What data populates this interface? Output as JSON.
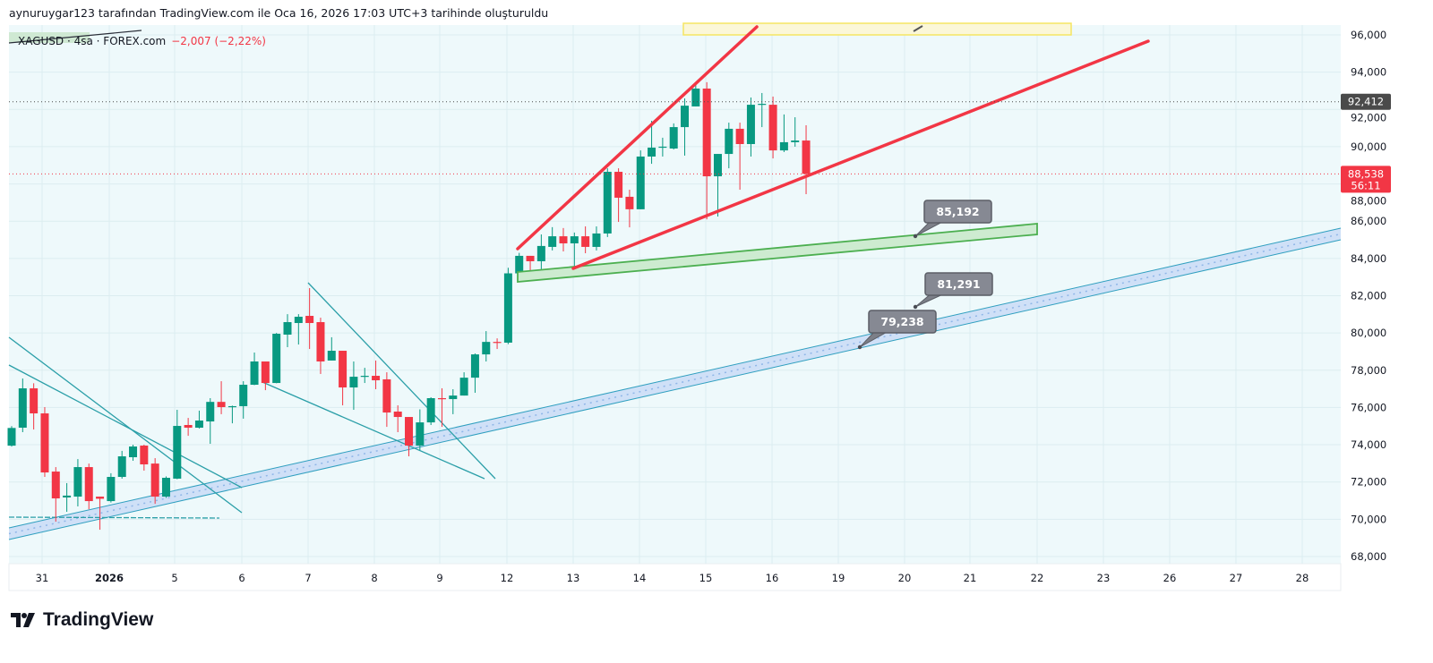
{
  "header": {
    "attribution": "aynuruygar123 tarafından TradingView.com ile Oca 16, 2026 17:03 UTC+3 tarihinde oluşturuldu",
    "symbol_line": "XAGUSD · 4sa · FOREX.com",
    "change": "−2,007 (−2,22%)"
  },
  "footer": {
    "brand": "TradingView"
  },
  "colors": {
    "up": "#089981",
    "down": "#f23645",
    "background": "#eef9fb",
    "grid": "#dcedf0"
  },
  "chart_data": {
    "type": "candlestick",
    "symbol": "XAGUSD",
    "interval": "4sa",
    "ylim": [
      67500,
      97000
    ],
    "y_ticks": [
      "96,000",
      "94,000",
      "92,000",
      "90,000",
      "88,000",
      "86,000",
      "84,000",
      "82,000",
      "80,000",
      "78,000",
      "76,000",
      "74,000",
      "72,000",
      "70,000",
      "68,000"
    ],
    "y_tick_values": [
      96000,
      94000,
      92000,
      90000,
      88000,
      86000,
      84000,
      82000,
      80000,
      78000,
      76000,
      74000,
      72000,
      70000,
      68000
    ],
    "x_ticks": [
      "31",
      "2026",
      "5",
      "6",
      "7",
      "8",
      "9",
      "12",
      "13",
      "14",
      "15",
      "16",
      "19",
      "20",
      "21",
      "22",
      "23",
      "26",
      "27",
      "28"
    ],
    "price_markers": [
      {
        "label": "92,412",
        "value": 92412,
        "color": "#4a4a4a"
      },
      {
        "label": "88,538",
        "sub": "56:11",
        "value": 88538,
        "color": "#f23645"
      }
    ],
    "annotations": [
      {
        "label": "85,192",
        "value": 85192
      },
      {
        "label": "81,291",
        "value": 81291
      },
      {
        "label": "79,238",
        "value": 79238
      }
    ],
    "ohlc": [
      [
        73950,
        75000,
        73900,
        74900
      ],
      [
        74915,
        77556,
        74675,
        77027
      ],
      [
        77027,
        77300,
        74820,
        75683
      ],
      [
        75683,
        76020,
        72273,
        72513
      ],
      [
        72560,
        72800,
        69870,
        71120
      ],
      [
        71170,
        71940,
        70400,
        71270
      ],
      [
        71215,
        73230,
        70690,
        72800
      ],
      [
        72800,
        72990,
        70540,
        70975
      ],
      [
        71215,
        71215,
        69440,
        71100
      ],
      [
        70975,
        72470,
        70900,
        72273
      ],
      [
        72273,
        73670,
        72180,
        73378
      ],
      [
        73330,
        74000,
        73140,
        73906
      ],
      [
        73954,
        74000,
        72610,
        72946
      ],
      [
        72990,
        73280,
        70830,
        71215
      ],
      [
        71215,
        72300,
        71150,
        72225
      ],
      [
        72180,
        75875,
        72150,
        75010
      ],
      [
        75060,
        75440,
        74480,
        74915
      ],
      [
        74915,
        75830,
        74870,
        75300
      ],
      [
        75250,
        76500,
        74050,
        76300
      ],
      [
        76300,
        77410,
        75640,
        76020
      ],
      [
        76020,
        76100,
        75150,
        76070
      ],
      [
        76070,
        77410,
        75400,
        77220
      ],
      [
        77220,
        78950,
        77200,
        78470
      ],
      [
        78470,
        78470,
        76930,
        77315
      ],
      [
        77315,
        80000,
        77300,
        79958
      ],
      [
        79910,
        81010,
        79240,
        80582
      ],
      [
        80534,
        81010,
        79380,
        80870
      ],
      [
        80918,
        82407,
        79140,
        80534
      ],
      [
        80582,
        80820,
        77800,
        78470
      ],
      [
        78520,
        79770,
        78520,
        79045
      ],
      [
        79045,
        79045,
        76115,
        77075
      ],
      [
        77075,
        78470,
        75875,
        77650
      ],
      [
        77650,
        78130,
        77315,
        77700
      ],
      [
        77700,
        78520,
        76980,
        77460
      ],
      [
        77510,
        77890,
        74960,
        75730
      ],
      [
        75780,
        76115,
        74675,
        75490
      ],
      [
        75490,
        75490,
        73380,
        73954
      ],
      [
        73954,
        75900,
        73715,
        75200
      ],
      [
        75200,
        76550,
        75060,
        76500
      ],
      [
        76500,
        77030,
        74960,
        76450
      ],
      [
        76450,
        76980,
        75640,
        76640
      ],
      [
        76640,
        77890,
        76640,
        77600
      ],
      [
        77600,
        78900,
        76790,
        78850
      ],
      [
        78850,
        80100,
        78470,
        79520
      ],
      [
        79520,
        79710,
        79140,
        79470
      ],
      [
        79480,
        83500,
        79400,
        83200
      ],
      [
        83200,
        84300,
        82850,
        84140
      ],
      [
        84140,
        84140,
        83320,
        83850
      ],
      [
        83850,
        85290,
        83230,
        84670
      ],
      [
        84620,
        85680,
        84430,
        85190
      ],
      [
        85190,
        85630,
        84380,
        84810
      ],
      [
        84810,
        85390,
        83080,
        85190
      ],
      [
        85190,
        85720,
        84280,
        84620
      ],
      [
        84620,
        85720,
        84430,
        85340
      ],
      [
        85340,
        88840,
        85150,
        88650
      ],
      [
        88650,
        88840,
        85960,
        87260
      ],
      [
        87310,
        87690,
        85670,
        86640
      ],
      [
        86640,
        89800,
        86640,
        89470
      ],
      [
        89470,
        91390,
        89080,
        89950
      ],
      [
        89950,
        90480,
        89470,
        90000
      ],
      [
        89900,
        91250,
        89850,
        91050
      ],
      [
        91050,
        92590,
        89520,
        92200
      ],
      [
        92160,
        93310,
        92160,
        93120
      ],
      [
        93120,
        93460,
        86100,
        88410
      ],
      [
        88410,
        89610,
        86250,
        89610
      ],
      [
        89610,
        91290,
        88840,
        90960
      ],
      [
        90960,
        91290,
        87690,
        90140
      ],
      [
        90140,
        92640,
        89470,
        92250
      ],
      [
        92250,
        92880,
        91050,
        92300
      ],
      [
        92250,
        92690,
        89370,
        89800
      ],
      [
        89800,
        91730,
        89710,
        90240
      ],
      [
        90240,
        91580,
        90000,
        90330
      ],
      [
        90330,
        91150,
        87450,
        88538
      ]
    ]
  }
}
